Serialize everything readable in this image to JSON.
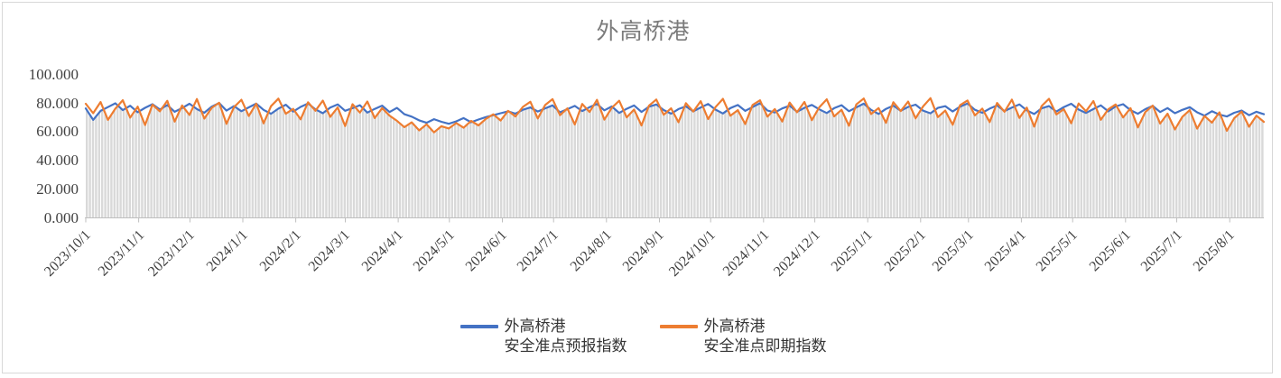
{
  "chart_data": {
    "type": "line",
    "title": "外高桥港",
    "ylim": [
      0,
      100
    ],
    "grid": "off",
    "legend_position": "bottom-center",
    "y_tick_labels": [
      "0.000",
      "20.000",
      "40.000",
      "60.000",
      "80.000",
      "100.000"
    ],
    "y_tick_values": [
      0,
      20,
      40,
      60,
      80,
      100
    ],
    "x_tick_labels": [
      "2023/10/1",
      "2023/11/1",
      "2023/12/1",
      "2024/1/1",
      "2024/2/1",
      "2024/3/1",
      "2024/4/1",
      "2024/5/1",
      "2024/6/1",
      "2024/7/1",
      "2024/8/1",
      "2024/9/1",
      "2024/10/1",
      "2024/11/1",
      "2024/12/1",
      "2025/1/1",
      "2025/2/1",
      "2025/3/1",
      "2025/4/1",
      "2025/5/1",
      "2025/6/1",
      "2025/7/1",
      "2025/8/1"
    ],
    "x_tick_days": [
      0,
      31,
      61,
      92,
      123,
      152,
      183,
      213,
      244,
      274,
      305,
      336,
      366,
      397,
      427,
      458,
      489,
      517,
      548,
      578,
      609,
      639,
      670
    ],
    "total_days": 690,
    "dropline_color": "#d9d9d9",
    "axis_color": "#bfbfbf",
    "series": [
      {
        "name": "外高桥港 安全准点预报指数",
        "color": "#4472C4",
        "values": [
          76.5,
          68.5,
          74.8,
          77.5,
          80.1,
          75.3,
          78.4,
          73.9,
          77.0,
          79.5,
          75.8,
          78.9,
          74.2,
          76.8,
          79.8,
          76.1,
          73.5,
          77.8,
          80.3,
          75.0,
          78.2,
          74.6,
          77.3,
          79.9,
          75.5,
          72.8,
          76.4,
          79.1,
          74.3,
          77.6,
          80.0,
          75.9,
          73.2,
          77.1,
          79.4,
          74.9,
          76.7,
          78.8,
          73.6,
          76.2,
          78.5,
          74.0,
          76.9,
          72.5,
          70.8,
          68.2,
          66.5,
          69.0,
          67.2,
          65.8,
          67.5,
          69.8,
          66.9,
          68.8,
          70.5,
          71.8,
          73.2,
          74.5,
          72.9,
          75.6,
          77.2,
          74.4,
          76.6,
          78.7,
          73.8,
          76.0,
          78.3,
          74.7,
          77.4,
          79.6,
          75.2,
          77.9,
          73.4,
          76.3,
          78.6,
          74.1,
          77.7,
          79.3,
          75.4,
          72.9,
          76.1,
          78.0,
          74.5,
          77.2,
          79.7,
          75.7,
          73.0,
          76.8,
          78.9,
          74.8,
          77.5,
          80.2,
          75.1,
          73.7,
          76.5,
          78.4,
          74.2,
          77.0,
          79.0,
          75.9,
          73.3,
          76.7,
          78.8,
          74.6,
          77.3,
          79.9,
          75.5,
          72.7,
          76.2,
          78.5,
          74.9,
          77.6,
          79.2,
          75.0,
          73.1,
          76.9,
          78.1,
          74.4,
          77.8,
          80.0,
          75.6,
          73.5,
          76.4,
          78.6,
          74.7,
          77.1,
          79.4,
          75.2,
          72.6,
          76.6,
          78.2,
          74.3,
          77.5,
          79.8,
          75.8,
          73.4,
          76.1,
          78.7,
          74.5,
          77.9,
          79.5,
          75.3,
          72.8,
          76.0,
          78.3,
          74.0,
          76.8,
          73.2,
          75.5,
          77.4,
          73.8,
          71.5,
          74.6,
          72.2,
          70.9,
          73.5,
          75.1,
          71.8,
          74.2,
          72.5
        ]
      },
      {
        "name": "外高桥港 安全准点即期指数",
        "color": "#ED7D31",
        "values": [
          79.8,
          73.2,
          81.0,
          68.5,
          76.4,
          82.3,
          70.1,
          77.8,
          64.9,
          79.2,
          74.5,
          81.8,
          67.3,
          78.6,
          72.0,
          83.1,
          69.4,
          76.9,
          80.5,
          65.8,
          77.4,
          82.6,
          71.2,
          79.9,
          66.1,
          78.1,
          83.4,
          72.8,
          76.2,
          68.9,
          80.8,
          74.9,
          82.0,
          70.6,
          77.2,
          64.2,
          79.5,
          73.6,
          81.4,
          69.8,
          76.8,
          71.5,
          67.9,
          63.5,
          66.8,
          61.2,
          65.4,
          59.8,
          64.1,
          62.5,
          66.3,
          63.0,
          67.8,
          64.7,
          69.2,
          72.4,
          68.1,
          74.8,
          70.9,
          77.6,
          81.2,
          69.5,
          78.9,
          83.0,
          71.8,
          76.5,
          65.3,
          79.7,
          74.1,
          82.5,
          68.7,
          77.0,
          81.9,
          70.3,
          75.8,
          64.6,
          78.4,
          82.8,
          72.1,
          76.6,
          66.9,
          80.2,
          74.4,
          81.6,
          69.1,
          77.5,
          83.2,
          71.4,
          75.3,
          65.6,
          79.0,
          82.2,
          70.8,
          76.1,
          67.4,
          80.6,
          73.9,
          81.1,
          68.3,
          77.3,
          82.9,
          71.0,
          75.6,
          64.4,
          79.4,
          83.5,
          72.6,
          76.8,
          66.5,
          80.9,
          74.7,
          81.3,
          69.6,
          77.9,
          83.7,
          70.5,
          75.0,
          65.1,
          78.8,
          82.1,
          71.7,
          76.4,
          67.0,
          80.4,
          74.2,
          82.7,
          69.9,
          77.1,
          63.8,
          78.2,
          83.3,
          72.3,
          76.0,
          66.2,
          80.0,
          74.6,
          81.7,
          68.6,
          75.9,
          79.3,
          70.2,
          76.7,
          63.3,
          74.0,
          78.5,
          65.9,
          72.9,
          61.8,
          70.6,
          75.4,
          62.4,
          71.2,
          66.6,
          73.8,
          60.9,
          69.7,
          74.3,
          63.7,
          71.5,
          67.1
        ]
      }
    ]
  },
  "legend": {
    "items": [
      {
        "line1": "外高桥港",
        "line2": "安全准点预报指数",
        "color": "#4472C4"
      },
      {
        "line1": "外高桥港",
        "line2": "安全准点即期指数",
        "color": "#ED7D31"
      }
    ]
  }
}
